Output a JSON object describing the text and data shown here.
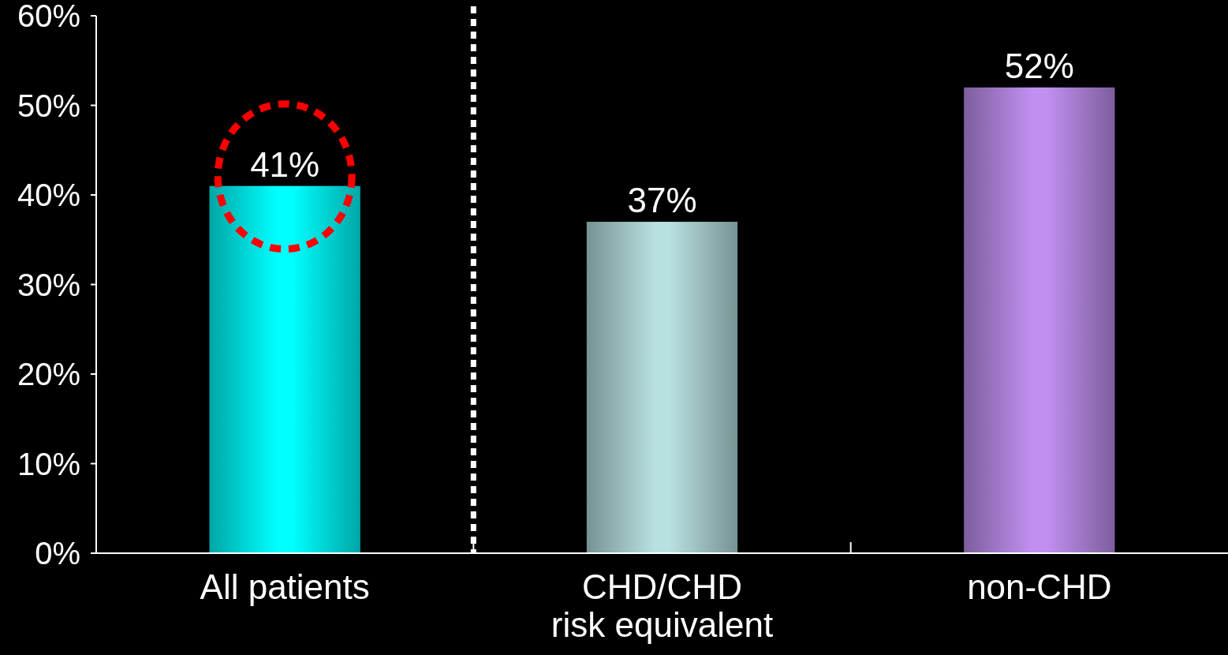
{
  "chart_data": {
    "type": "bar",
    "categories": [
      "All patients",
      "CHD/CHD\nrisk equivalent",
      "non-CHD"
    ],
    "values": [
      41,
      37,
      52
    ],
    "colors": [
      "#00ffff",
      "#b8e0e0",
      "#c090f0"
    ],
    "ylim": [
      0,
      60
    ],
    "yticks": [
      {
        "value": 0,
        "label": "0%"
      },
      {
        "value": 10,
        "label": "10%"
      },
      {
        "value": 20,
        "label": "20%"
      },
      {
        "value": 30,
        "label": "30%"
      },
      {
        "value": 40,
        "label": "40%"
      },
      {
        "value": 50,
        "label": "50%"
      },
      {
        "value": 60,
        "label": "60%"
      }
    ],
    "value_labels": [
      "41%",
      "37%",
      "52%"
    ],
    "grid": false
  }
}
